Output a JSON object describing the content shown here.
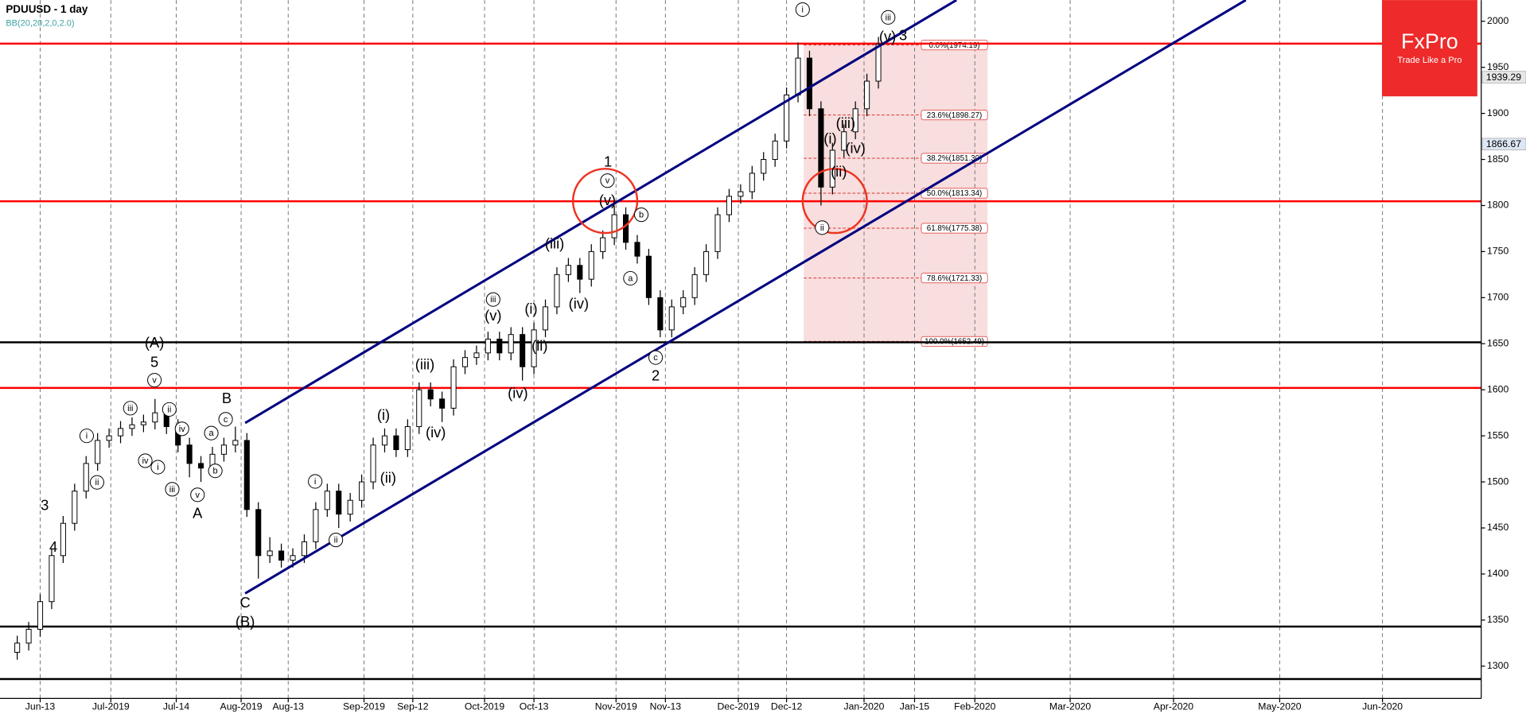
{
  "chart_data": {
    "type": "candlestick",
    "title": "PDUUSD - 1 day",
    "subtitle": "BB(20,20,2,0,2.0)",
    "up_color": "#ffffff",
    "down_color": "#000000",
    "x": [
      3,
      5,
      7,
      9,
      11,
      13,
      15,
      17,
      19,
      21,
      23,
      25,
      27,
      29,
      31,
      33,
      35,
      37,
      39,
      41,
      43,
      45,
      47,
      49,
      51,
      53,
      55,
      57,
      59,
      61,
      63,
      65,
      67,
      69,
      71,
      73,
      75,
      77,
      79,
      81,
      83,
      85,
      87,
      89,
      91,
      93,
      95,
      97,
      99,
      101,
      103,
      105,
      107,
      109,
      111,
      113,
      115,
      117,
      119,
      121,
      123,
      125,
      127,
      129,
      131,
      133,
      135,
      137,
      139,
      141,
      143,
      145,
      147,
      149,
      151,
      153
    ],
    "open": [
      1315,
      1325,
      1340,
      1370,
      1420,
      1455,
      1490,
      1520,
      1545,
      1550,
      1558,
      1562,
      1565,
      1575,
      1560,
      1540,
      1520,
      1515,
      1530,
      1540,
      1545,
      1470,
      1420,
      1425,
      1415,
      1420,
      1435,
      1470,
      1490,
      1465,
      1480,
      1500,
      1540,
      1550,
      1535,
      1560,
      1600,
      1590,
      1580,
      1625,
      1635,
      1640,
      1655,
      1640,
      1660,
      1625,
      1665,
      1690,
      1725,
      1735,
      1720,
      1750,
      1765,
      1790,
      1760,
      1745,
      1700,
      1665,
      1690,
      1700,
      1725,
      1750,
      1790,
      1810,
      1815,
      1835,
      1850,
      1870,
      1920,
      1960,
      1905,
      1820,
      1860,
      1880,
      1905,
      1935
    ],
    "high": [
      1333,
      1348,
      1378,
      1428,
      1463,
      1498,
      1528,
      1553,
      1558,
      1566,
      1570,
      1573,
      1590,
      1583,
      1568,
      1548,
      1528,
      1538,
      1548,
      1560,
      1553,
      1478,
      1440,
      1433,
      1428,
      1443,
      1478,
      1498,
      1498,
      1488,
      1508,
      1548,
      1558,
      1558,
      1568,
      1608,
      1608,
      1598,
      1633,
      1643,
      1648,
      1663,
      1663,
      1668,
      1668,
      1673,
      1698,
      1733,
      1743,
      1743,
      1758,
      1773,
      1800,
      1798,
      1768,
      1753,
      1708,
      1698,
      1708,
      1733,
      1758,
      1798,
      1818,
      1823,
      1843,
      1858,
      1878,
      1928,
      1977,
      1968,
      1913,
      1868,
      1888,
      1913,
      1943,
      1983
    ],
    "low": [
      1307,
      1317,
      1332,
      1362,
      1412,
      1447,
      1482,
      1512,
      1537,
      1542,
      1550,
      1554,
      1557,
      1552,
      1532,
      1505,
      1500,
      1507,
      1522,
      1532,
      1462,
      1395,
      1412,
      1407,
      1407,
      1412,
      1427,
      1462,
      1450,
      1457,
      1472,
      1492,
      1532,
      1527,
      1527,
      1552,
      1582,
      1565,
      1572,
      1617,
      1627,
      1632,
      1632,
      1632,
      1610,
      1617,
      1657,
      1682,
      1717,
      1705,
      1712,
      1742,
      1757,
      1752,
      1737,
      1692,
      1657,
      1657,
      1682,
      1692,
      1717,
      1742,
      1782,
      1802,
      1807,
      1827,
      1842,
      1862,
      1912,
      1897,
      1800,
      1812,
      1852,
      1872,
      1897,
      1927
    ],
    "close": [
      1325,
      1340,
      1370,
      1420,
      1455,
      1490,
      1520,
      1545,
      1550,
      1558,
      1562,
      1565,
      1575,
      1560,
      1540,
      1520,
      1515,
      1530,
      1540,
      1545,
      1470,
      1420,
      1425,
      1415,
      1420,
      1435,
      1470,
      1490,
      1465,
      1480,
      1500,
      1540,
      1550,
      1535,
      1560,
      1600,
      1590,
      1580,
      1625,
      1635,
      1640,
      1655,
      1640,
      1660,
      1625,
      1665,
      1690,
      1725,
      1735,
      1720,
      1750,
      1765,
      1790,
      1760,
      1745,
      1700,
      1665,
      1690,
      1700,
      1725,
      1750,
      1790,
      1810,
      1815,
      1835,
      1850,
      1870,
      1920,
      1960,
      1905,
      1820,
      1860,
      1880,
      1905,
      1935,
      1975
    ],
    "xlim": [
      0,
      258
    ],
    "ylim": [
      1265,
      2023
    ],
    "yticks": [
      1300,
      1350,
      1400,
      1450,
      1500,
      1550,
      1600,
      1650,
      1700,
      1750,
      1800,
      1850,
      1900,
      1950,
      2000
    ],
    "xticks": [
      {
        "value": 7,
        "label": "Jun-13"
      },
      {
        "value": 19.3,
        "label": "Jul-2019"
      },
      {
        "value": 30.7,
        "label": "Jul-14"
      },
      {
        "value": 42,
        "label": "Aug-2019"
      },
      {
        "value": 50.2,
        "label": "Aug-13"
      },
      {
        "value": 63.4,
        "label": "Sep-2019"
      },
      {
        "value": 71.9,
        "label": "Sep-12"
      },
      {
        "value": 84.4,
        "label": "Oct-2019"
      },
      {
        "value": 93,
        "label": "Oct-13"
      },
      {
        "value": 107.3,
        "label": "Nov-2019"
      },
      {
        "value": 115.9,
        "label": "Nov-13"
      },
      {
        "value": 128.6,
        "label": "Dec-2019"
      },
      {
        "value": 137,
        "label": "Dec-12"
      },
      {
        "value": 150.5,
        "label": "Jan-2020"
      },
      {
        "value": 159.3,
        "label": "Jan-15"
      },
      {
        "value": 169.8,
        "label": "Feb-2020"
      },
      {
        "value": 186.4,
        "label": "Mar-2020"
      },
      {
        "value": 204.4,
        "label": "Apr-2020"
      },
      {
        "value": 222.9,
        "label": "May-2020"
      },
      {
        "value": 240.8,
        "label": "Jun-2020"
      }
    ],
    "grid": true,
    "horizontal_lines": [
      {
        "value": 1975.7,
        "color": "#ff0000"
      },
      {
        "value": 1804.6,
        "color": "#ff0000"
      },
      {
        "value": 1651.5,
        "color": "#000000"
      },
      {
        "value": 1602,
        "color": "#ff0000"
      },
      {
        "value": 1343,
        "color": "#000000"
      },
      {
        "value": 1286,
        "color": "#000000"
      }
    ],
    "channel_lines": [
      {
        "x": [
          42.7,
          166.6
        ],
        "y": [
          1564,
          2023
        ],
        "color": "#000080"
      },
      {
        "x": [
          42.7,
          217
        ],
        "y": [
          1379,
          2023
        ],
        "color": "#000080"
      }
    ],
    "fibonacci": {
      "x_range": [
        140,
        172
      ],
      "color": "#f8dede",
      "levels": [
        {
          "value": 1974.19,
          "label": "0.0%(1974.19)"
        },
        {
          "value": 1898.27,
          "label": "23.6%(1898.27)"
        },
        {
          "value": 1851.3,
          "label": "38.2%(1851.30)"
        },
        {
          "value": 1813.34,
          "label": "50.0%(1813.34)"
        },
        {
          "value": 1775.38,
          "label": "61.8%(1775.38)"
        },
        {
          "value": 1721.33,
          "label": "78.6%(1721.33)"
        },
        {
          "value": 1652.49,
          "label": "100.0%(1652.49)"
        }
      ]
    },
    "price_markers": [
      {
        "value": 1939.29,
        "color": "#e6e6e6"
      },
      {
        "value": 1866.67,
        "color": "#dde6f3"
      }
    ],
    "circles": [
      {
        "x": 105.4,
        "y": 1805
      },
      {
        "x": 145.4,
        "y": 1805
      }
    ],
    "annotations": [
      {
        "text": "i",
        "x": 139.8,
        "y": 2012.7,
        "circled": true
      },
      {
        "text": "iii",
        "x": 154.7,
        "y": 2004.2,
        "circled": true
      },
      {
        "text": "(v)",
        "x": 154.6,
        "y": 1983,
        "circled": false
      },
      {
        "text": "3",
        "x": 157.3,
        "y": 1984,
        "circled": false
      },
      {
        "text": "(i)",
        "x": 144.6,
        "y": 1872,
        "circled": false
      },
      {
        "text": "(iii)",
        "x": 147.3,
        "y": 1889,
        "circled": false
      },
      {
        "text": "(iv)",
        "x": 149,
        "y": 1861.7,
        "circled": false
      },
      {
        "text": "(ii)",
        "x": 146.1,
        "y": 1836.3,
        "circled": false
      },
      {
        "text": "ii",
        "x": 143.2,
        "y": 1776,
        "circled": true
      },
      {
        "text": "1",
        "x": 105.9,
        "y": 1847,
        "circled": false
      },
      {
        "text": "v",
        "x": 105.8,
        "y": 1827,
        "circled": true
      },
      {
        "text": "(v)",
        "x": 105.8,
        "y": 1805,
        "circled": false
      },
      {
        "text": "b",
        "x": 111.7,
        "y": 1790,
        "circled": true
      },
      {
        "text": "a",
        "x": 109.8,
        "y": 1721,
        "circled": true
      },
      {
        "text": "c",
        "x": 114.2,
        "y": 1635,
        "circled": true
      },
      {
        "text": "2",
        "x": 114.2,
        "y": 1615,
        "circled": false
      },
      {
        "text": "(iii)",
        "x": 96.6,
        "y": 1758,
        "circled": false
      },
      {
        "text": "(iv)",
        "x": 100.8,
        "y": 1693,
        "circled": false
      },
      {
        "text": "(i)",
        "x": 92.5,
        "y": 1687.5,
        "circled": false
      },
      {
        "text": "(ii)",
        "x": 94,
        "y": 1647,
        "circled": false
      },
      {
        "text": "iii",
        "x": 85.9,
        "y": 1698,
        "circled": true
      },
      {
        "text": "(v)",
        "x": 85.9,
        "y": 1680,
        "circled": false
      },
      {
        "text": "(iv)",
        "x": 90.2,
        "y": 1595.6,
        "circled": false
      },
      {
        "text": "(iii)",
        "x": 74,
        "y": 1627,
        "circled": false
      },
      {
        "text": "(iv)",
        "x": 75.9,
        "y": 1553,
        "circled": false
      },
      {
        "text": "(i)",
        "x": 66.8,
        "y": 1572,
        "circled": false
      },
      {
        "text": "(ii)",
        "x": 67.6,
        "y": 1504,
        "circled": false
      },
      {
        "text": "i",
        "x": 54.9,
        "y": 1500.5,
        "circled": true
      },
      {
        "text": "ii",
        "x": 58.5,
        "y": 1437,
        "circled": true
      },
      {
        "text": "(A)",
        "x": 26.9,
        "y": 1650.5,
        "circled": false
      },
      {
        "text": "5",
        "x": 26.9,
        "y": 1629.4,
        "circled": false
      },
      {
        "text": "v",
        "x": 26.9,
        "y": 1610.4,
        "circled": true
      },
      {
        "text": "B",
        "x": 39.5,
        "y": 1590,
        "circled": false
      },
      {
        "text": "c",
        "x": 39.3,
        "y": 1568,
        "circled": true
      },
      {
        "text": "a",
        "x": 36.8,
        "y": 1553,
        "circled": true
      },
      {
        "text": "b",
        "x": 37.5,
        "y": 1512,
        "circled": true
      },
      {
        "text": "C",
        "x": 42.7,
        "y": 1368.6,
        "circled": false
      },
      {
        "text": "(B)",
        "x": 42.7,
        "y": 1347.5,
        "circled": false
      },
      {
        "text": "A",
        "x": 34.4,
        "y": 1465.7,
        "circled": false
      },
      {
        "text": "v",
        "x": 34.4,
        "y": 1486,
        "circled": true
      },
      {
        "text": "3",
        "x": 7.8,
        "y": 1474,
        "circled": false
      },
      {
        "text": "4",
        "x": 9.3,
        "y": 1428.8,
        "circled": false
      },
      {
        "text": "i",
        "x": 15.1,
        "y": 1550,
        "circled": true
      },
      {
        "text": "ii",
        "x": 16.9,
        "y": 1499.5,
        "circled": true
      },
      {
        "text": "iii",
        "x": 22.7,
        "y": 1580,
        "circled": true
      },
      {
        "text": "iv",
        "x": 25.3,
        "y": 1523,
        "circled": true
      },
      {
        "text": "i",
        "x": 27.5,
        "y": 1516,
        "circled": true
      },
      {
        "text": "ii",
        "x": 29.5,
        "y": 1578.7,
        "circled": true
      },
      {
        "text": "iv",
        "x": 31.7,
        "y": 1557.6,
        "circled": true
      },
      {
        "text": "iii",
        "x": 30,
        "y": 1492,
        "circled": true
      }
    ]
  },
  "logo": {
    "name": "FxPro",
    "tagline": "Trade Like a Pro"
  }
}
